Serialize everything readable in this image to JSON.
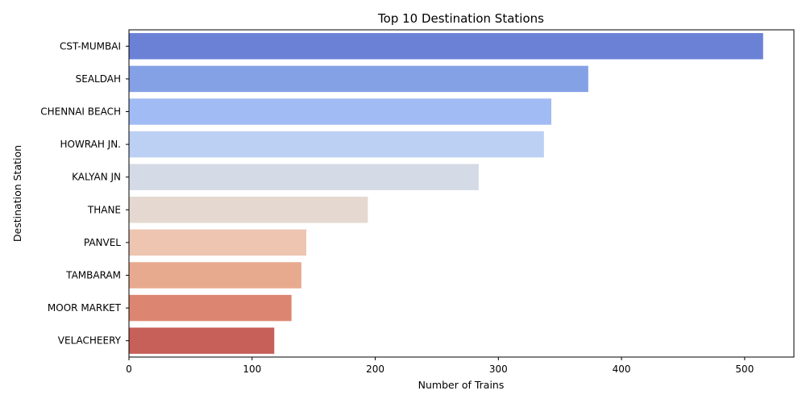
{
  "chart_data": {
    "type": "bar",
    "orientation": "horizontal",
    "title": "Top 10 Destination Stations",
    "xlabel": "Number of Trains",
    "ylabel": "Destination Station",
    "xlim": [
      0,
      540
    ],
    "xticks": [
      0,
      100,
      200,
      300,
      400,
      500
    ],
    "grid": false,
    "categories": [
      "CST-MUMBAI",
      "SEALDAH",
      "CHENNAI BEACH",
      "HOWRAH JN.",
      "KALYAN JN",
      "THANE",
      "PANVEL",
      "TAMBARAM",
      "MOOR MARKET",
      "VELACHEERY"
    ],
    "values": [
      515,
      373,
      343,
      337,
      284,
      194,
      144,
      140,
      132,
      118
    ],
    "colors": [
      "#6a81d6",
      "#84a1e6",
      "#a1bbf4",
      "#bcd0f4",
      "#d4dae6",
      "#e5d8d0",
      "#edc5b1",
      "#e8aa8f",
      "#dc8672",
      "#c66059"
    ]
  }
}
